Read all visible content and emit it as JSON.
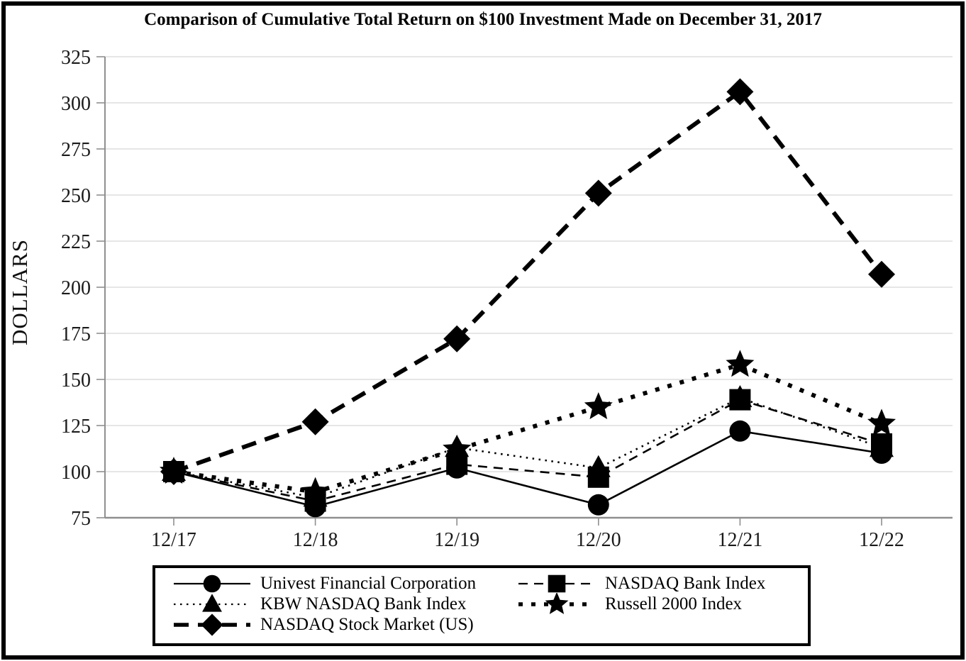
{
  "page": {
    "background": "#ffffff",
    "frame_color": "#000000"
  },
  "chart_data": {
    "type": "line",
    "title": "Comparison of Cumulative Total Return on $100 Investment Made on December 31, 2017",
    "ylabel": "DOLLARS",
    "xlabel": "",
    "categories": [
      "12/17",
      "12/18",
      "12/19",
      "12/20",
      "12/21",
      "12/22"
    ],
    "y_ticks": [
      75,
      100,
      125,
      150,
      175,
      200,
      225,
      250,
      275,
      300,
      325
    ],
    "ylim": [
      75,
      325
    ],
    "grid": "horizontal-light-gray",
    "legend_position": "bottom-center-boxed",
    "series": [
      {
        "name": "Univest Financial Corporation",
        "marker": "circle",
        "line": "solid",
        "weight": "thin",
        "values": [
          100,
          81,
          102,
          82,
          122,
          110
        ]
      },
      {
        "name": "NASDAQ Bank Index",
        "marker": "square",
        "line": "dashed",
        "weight": "thin",
        "values": [
          100,
          84,
          104,
          97,
          139,
          115
        ]
      },
      {
        "name": "KBW NASDAQ Bank Index",
        "marker": "triangle",
        "line": "dotted",
        "weight": "thin",
        "values": [
          100,
          86,
          113,
          102,
          140,
          113
        ]
      },
      {
        "name": "Russell 2000 Index",
        "marker": "star",
        "line": "dotted",
        "weight": "bold",
        "values": [
          100,
          89,
          112,
          135,
          158,
          126
        ]
      },
      {
        "name": "NASDAQ Stock Market (US)",
        "marker": "diamond",
        "line": "dashed",
        "weight": "bold",
        "values": [
          100,
          127,
          172,
          251,
          306,
          207
        ]
      }
    ],
    "colors": {
      "series": "#000000",
      "grid": "#dedede",
      "axis": "#8f8f8f",
      "tick_text": "#1a1a1a"
    }
  }
}
